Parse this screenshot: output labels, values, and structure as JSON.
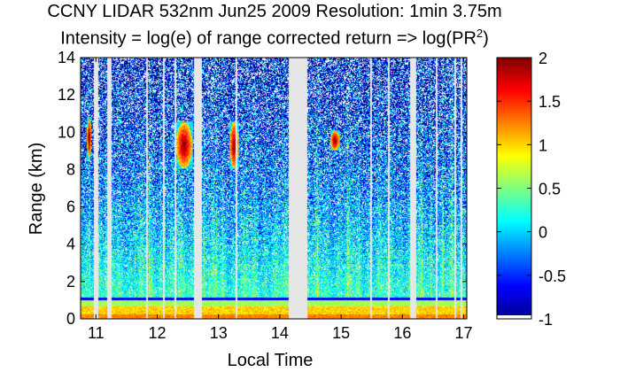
{
  "chart_data": {
    "type": "heatmap",
    "title": "CCNY LIDAR 532nm Jun25 2009 Resolution: 1min 3.75m",
    "subtitle_main": "Intensity = log(e) of range corrected return => log(PR",
    "subtitle_sup": "2",
    "subtitle_end": ")",
    "xlabel": "Local Time",
    "ylabel": "Range (km)",
    "xlim": [
      10.75,
      17.05
    ],
    "ylim": [
      0,
      14
    ],
    "xticks": [
      11,
      12,
      13,
      14,
      15,
      16,
      17
    ],
    "xtick_labels": [
      "11",
      "12",
      "13",
      "14",
      "15",
      "16",
      "17"
    ],
    "yticks": [
      0,
      2,
      4,
      6,
      8,
      10,
      12,
      14
    ],
    "ytick_labels": [
      "0",
      "2",
      "4",
      "6",
      "8",
      "10",
      "12",
      "14"
    ],
    "colorbar": {
      "range": [
        -1,
        2
      ],
      "ticks": [
        -1,
        -0.5,
        0,
        0.5,
        1,
        1.5,
        2
      ],
      "tick_labels": [
        "-1",
        "-0.5",
        "0",
        "0.5",
        "1",
        "1.5",
        "2"
      ],
      "colormap": "jet"
    },
    "gaps_local_time": [
      [
        10.96,
        11.04
      ],
      [
        11.18,
        11.26
      ],
      [
        11.82,
        11.85
      ],
      [
        12.09,
        12.12
      ],
      [
        12.28,
        12.31
      ],
      [
        12.6,
        12.73
      ],
      [
        13.28,
        13.31
      ],
      [
        14.15,
        14.45
      ],
      [
        15.48,
        15.51
      ],
      [
        15.77,
        15.8
      ],
      [
        16.13,
        16.22
      ],
      [
        16.55,
        16.58
      ],
      [
        16.85,
        16.88
      ],
      [
        16.95,
        16.98
      ]
    ],
    "cloud_layers": [
      {
        "x_range": [
          10.85,
          10.93
        ],
        "y_range": [
          8.6,
          10.8
        ]
      },
      {
        "x_range": [
          12.3,
          12.58
        ],
        "y_range": [
          8.0,
          10.6
        ]
      },
      {
        "x_range": [
          13.18,
          13.33
        ],
        "y_range": [
          8.0,
          10.6
        ]
      },
      {
        "x_range": [
          14.82,
          14.98
        ],
        "y_range": [
          9.0,
          10.1
        ]
      }
    ],
    "boundary_layer_top_km": 1.0
  }
}
